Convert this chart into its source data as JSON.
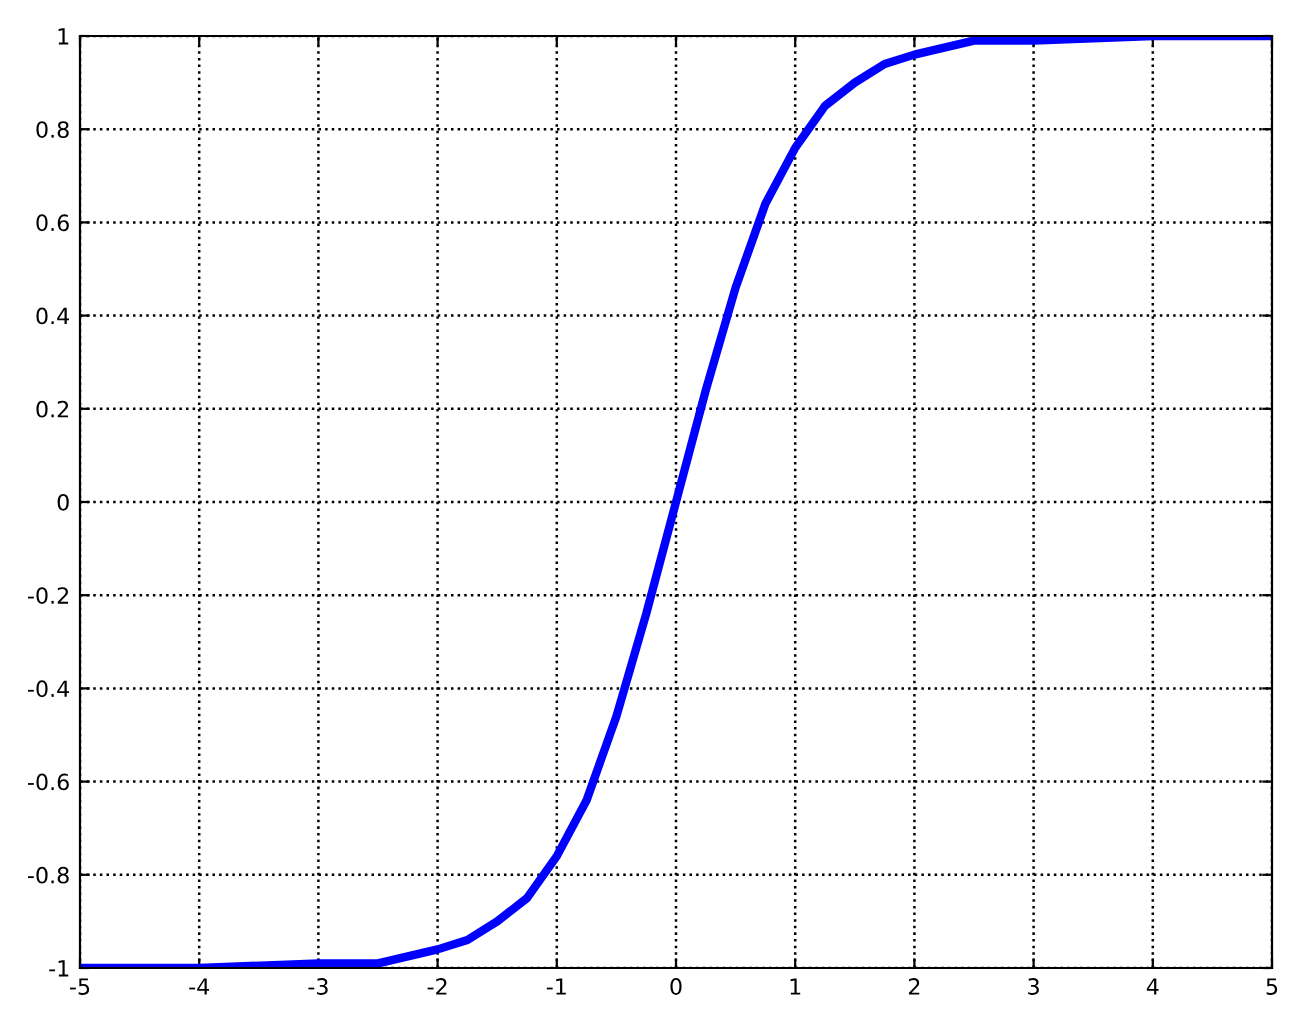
{
  "chart_data": {
    "type": "line",
    "x": [
      -5,
      -4,
      -3,
      -2.5,
      -2,
      -1.75,
      -1.5,
      -1.25,
      -1,
      -0.75,
      -0.5,
      -0.25,
      0,
      0.25,
      0.5,
      0.75,
      1,
      1.25,
      1.5,
      1.75,
      2,
      2.5,
      3,
      4,
      5
    ],
    "series": [
      {
        "color": "#0000ff",
        "values": [
          -1,
          -1,
          -0.99,
          -0.99,
          -0.96,
          -0.94,
          -0.9,
          -0.85,
          -0.76,
          -0.64,
          -0.46,
          -0.24,
          0,
          0.24,
          0.46,
          0.64,
          0.76,
          0.85,
          0.9,
          0.94,
          0.96,
          0.99,
          0.99,
          1,
          1
        ]
      }
    ],
    "xlim": [
      -5,
      5
    ],
    "ylim": [
      -1,
      1
    ],
    "xticks": [
      -5,
      -4,
      -3,
      -2,
      -1,
      0,
      1,
      2,
      3,
      4,
      5
    ],
    "yticks": [
      -1,
      -0.8,
      -0.6,
      -0.4,
      -0.2,
      0,
      0.2,
      0.4,
      0.6,
      0.8,
      1
    ],
    "grid": true,
    "line_style": "solid",
    "marker": "none"
  }
}
